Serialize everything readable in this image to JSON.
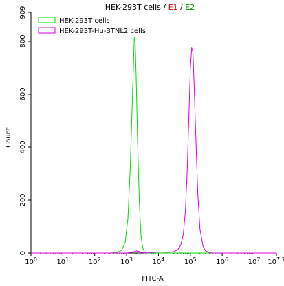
{
  "title": {
    "prefix": "HEK-293T cells / ",
    "e1": "E1",
    "sep": " / ",
    "e2": "E2"
  },
  "colors": {
    "title_text": "#000000",
    "e1": "#cc0000",
    "e2": "#008800",
    "series_a": "#00dd00",
    "series_b": "#dd00dd",
    "axis": "#000000"
  },
  "chart_data": {
    "type": "line",
    "xlabel": "FITC-A",
    "ylabel": "Count",
    "xscale": "log",
    "xlim": [
      1,
      50118723
    ],
    "ylim": [
      0,
      909
    ],
    "yticks": [
      0,
      200,
      400,
      600,
      800,
      909
    ],
    "ytick_labels": [
      "0",
      "200",
      "400",
      "600",
      "800",
      "909"
    ],
    "xticks": [
      {
        "base": "10",
        "exp": "0"
      },
      {
        "base": "10",
        "exp": "1"
      },
      {
        "base": "10",
        "exp": "2"
      },
      {
        "base": "10",
        "exp": "3"
      },
      {
        "base": "10",
        "exp": "4"
      },
      {
        "base": "10",
        "exp": "5"
      },
      {
        "base": "10",
        "exp": "6"
      },
      {
        "base": "10",
        "exp": "7"
      },
      {
        "base": "10",
        "exp": "7.7"
      }
    ],
    "legend_position": "top-left",
    "series": [
      {
        "name": "HEK-293T cells",
        "color": "#00dd00",
        "x": [
          1,
          100,
          300,
          500,
          700,
          900,
          1100,
          1300,
          1500,
          1650,
          1750,
          1850,
          2000,
          2200,
          2500,
          2800,
          3200,
          3600,
          4000,
          5000,
          7000,
          50118723
        ],
        "y": [
          0,
          0,
          0,
          2,
          10,
          40,
          130,
          320,
          560,
          720,
          815,
          800,
          660,
          430,
          200,
          70,
          20,
          5,
          1,
          0,
          0,
          0
        ]
      },
      {
        "name": "HEK-293T-Hu-BTNL2 cells",
        "color": "#dd00dd",
        "x": [
          1,
          1000,
          1500,
          2000,
          2500,
          3000,
          4000,
          6000,
          10000,
          20000,
          30000,
          40000,
          50000,
          60000,
          70000,
          80000,
          90000,
          100000,
          110000,
          120000,
          130000,
          150000,
          170000,
          200000,
          250000,
          300000,
          400000,
          500000,
          50118723
        ],
        "y": [
          0,
          0,
          3,
          8,
          6,
          2,
          0,
          2,
          4,
          3,
          5,
          12,
          30,
          70,
          160,
          320,
          520,
          700,
          775,
          760,
          650,
          420,
          230,
          90,
          25,
          8,
          2,
          0,
          0
        ]
      }
    ]
  }
}
